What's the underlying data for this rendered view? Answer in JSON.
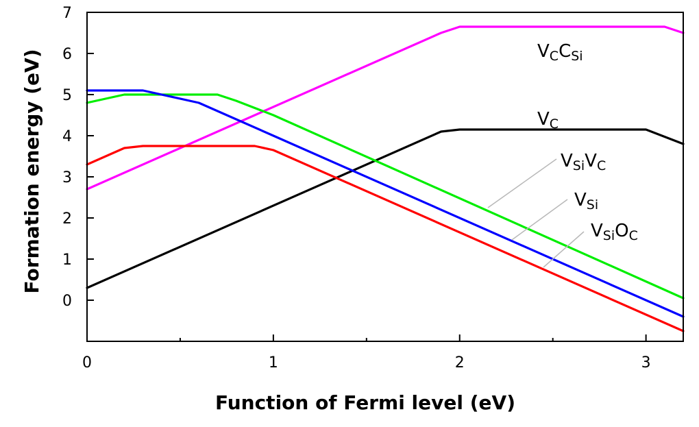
{
  "chart_data": {
    "type": "line",
    "title": "",
    "xlabel": "Function of Fermi level (eV)",
    "ylabel": "Formation energy (eV)",
    "xlim": [
      0,
      3.2
    ],
    "ylim": [
      -1,
      7
    ],
    "x_ticks": [
      0,
      1,
      2,
      3
    ],
    "x_minor_ticks": [
      0.5,
      1.5,
      2.5
    ],
    "y_ticks": [
      0,
      1,
      2,
      3,
      4,
      5,
      6,
      7
    ],
    "grid": false,
    "legend": "inline labels",
    "series": [
      {
        "name": "VCCSi",
        "label_parts": [
          {
            "t": "V",
            "sub": false
          },
          {
            "t": "C",
            "sub": true
          },
          {
            "t": "C",
            "sub": false
          },
          {
            "t": "Si",
            "sub": true
          }
        ],
        "color": "#ff00ff",
        "points": [
          [
            0,
            2.7
          ],
          [
            1.9,
            6.5
          ],
          [
            2.0,
            6.65
          ],
          [
            3.1,
            6.65
          ],
          [
            3.2,
            6.5
          ]
        ]
      },
      {
        "name": "VC",
        "label_parts": [
          {
            "t": "V",
            "sub": false
          },
          {
            "t": "C",
            "sub": true
          }
        ],
        "color": "#000000",
        "points": [
          [
            0,
            0.3
          ],
          [
            1.9,
            4.1
          ],
          [
            2.0,
            4.15
          ],
          [
            3.0,
            4.15
          ],
          [
            3.2,
            3.8
          ]
        ]
      },
      {
        "name": "VSiVC",
        "label_parts": [
          {
            "t": "V",
            "sub": false
          },
          {
            "t": "Si",
            "sub": true
          },
          {
            "t": "V",
            "sub": false
          },
          {
            "t": "C",
            "sub": true
          }
        ],
        "color": "#00ee00",
        "points": [
          [
            0,
            4.8
          ],
          [
            0.2,
            5.0
          ],
          [
            0.7,
            5.0
          ],
          [
            0.8,
            4.85
          ],
          [
            1.0,
            4.5
          ],
          [
            3.2,
            0.05
          ]
        ]
      },
      {
        "name": "VSi",
        "label_parts": [
          {
            "t": "V",
            "sub": false
          },
          {
            "t": "Si",
            "sub": true
          }
        ],
        "color": "#0000ff",
        "points": [
          [
            0,
            5.1
          ],
          [
            0.3,
            5.1
          ],
          [
            0.6,
            4.8
          ],
          [
            1.0,
            4.0
          ],
          [
            3.2,
            -0.4
          ]
        ]
      },
      {
        "name": "VSiOC",
        "label_parts": [
          {
            "t": "V",
            "sub": false
          },
          {
            "t": "Si",
            "sub": true
          },
          {
            "t": "O",
            "sub": false
          },
          {
            "t": "C",
            "sub": true
          }
        ],
        "color": "#ff0000",
        "points": [
          [
            0,
            3.3
          ],
          [
            0.2,
            3.7
          ],
          [
            0.3,
            3.75
          ],
          [
            0.9,
            3.75
          ],
          [
            1.0,
            3.65
          ],
          [
            3.2,
            -0.75
          ]
        ]
      }
    ]
  }
}
